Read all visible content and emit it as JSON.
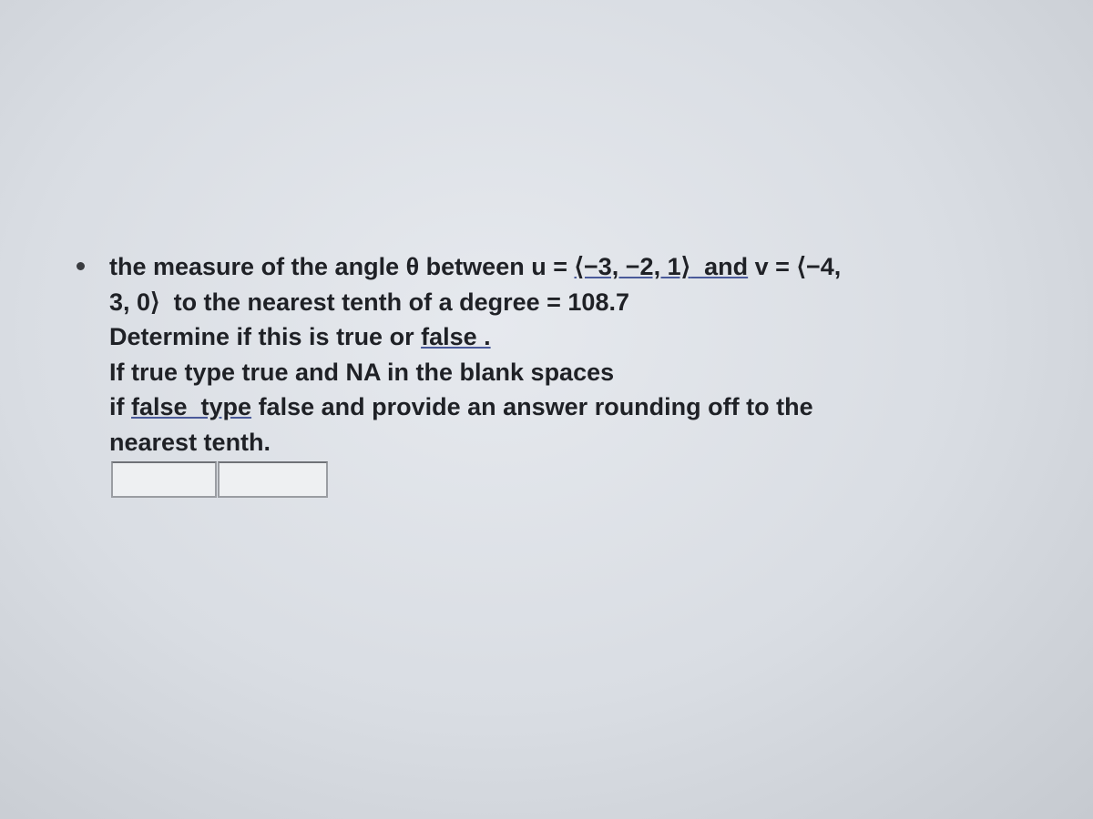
{
  "question": {
    "lines": [
      [
        "the measure of the angle θ between u = ",
        "⟨−3, −2, 1⟩",
        "  and",
        " v = ⟨−4,"
      ],
      [
        "3, 0⟩  to the nearest tenth of a degree = 108.7"
      ],
      [
        "Determine if this is true or ",
        "false ."
      ],
      [
        "If true type true and NA in the blank spaces"
      ],
      [
        "if ",
        "false  type",
        " false and provide an answer rounding off to the"
      ],
      [
        "nearest tenth."
      ]
    ]
  }
}
